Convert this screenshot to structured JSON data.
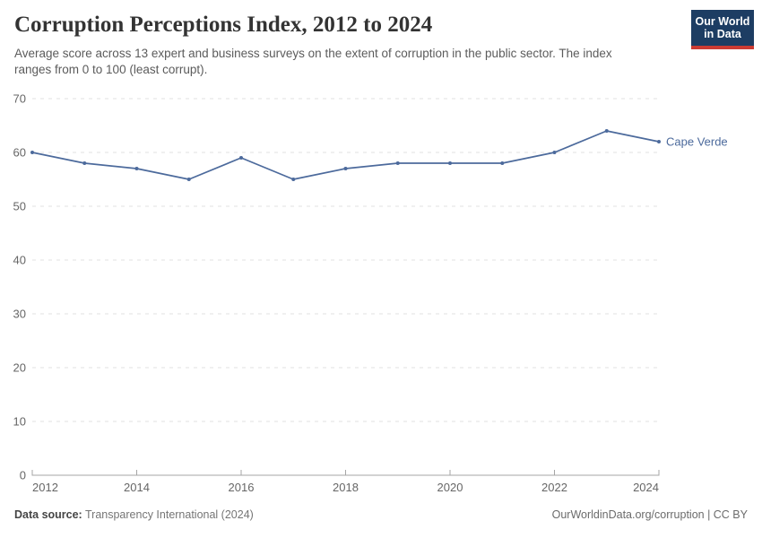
{
  "header": {
    "title": "Corruption Perceptions Index, 2012 to 2024",
    "subtitle": "Average score across 13 expert and business surveys on the extent of corruption in the public sector. The index ranges from 0 to 100 (least corrupt)."
  },
  "logo": {
    "line1": "Our World",
    "line2": "in Data",
    "bg_color": "#1d3d63",
    "accent_color": "#cc3b33"
  },
  "chart_data": {
    "type": "line",
    "title": "Corruption Perceptions Index, 2012 to 2024",
    "x": [
      2012,
      2013,
      2014,
      2015,
      2016,
      2017,
      2018,
      2019,
      2020,
      2021,
      2022,
      2023,
      2024
    ],
    "series": [
      {
        "name": "Cape Verde",
        "values": [
          60,
          58,
          57,
          55,
          59,
          55,
          57,
          58,
          58,
          58,
          60,
          64,
          62
        ],
        "color": "#4c6a9c"
      }
    ],
    "entity_label": "Cape Verde",
    "xlabel": "",
    "ylabel": "",
    "ylim": [
      0,
      70
    ],
    "y_ticks": [
      0,
      10,
      20,
      30,
      40,
      50,
      60,
      70
    ],
    "x_ticks": [
      2012,
      2014,
      2016,
      2018,
      2020,
      2022,
      2024
    ],
    "grid": "horizontal-dashed",
    "legend_position": "end-of-line-label"
  },
  "footer": {
    "source_label": "Data source:",
    "source_value": "Transparency International (2024)",
    "right_text": "OurWorldinData.org/corruption | CC BY"
  }
}
